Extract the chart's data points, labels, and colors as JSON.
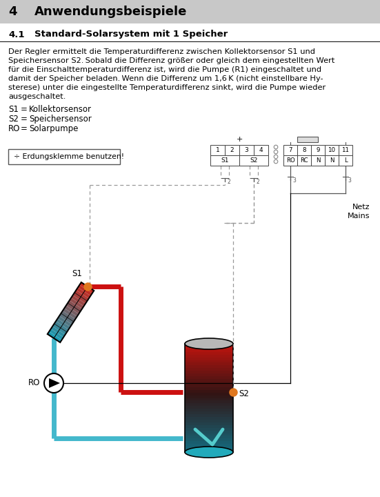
{
  "bg_color": "#ffffff",
  "header_bg": "#c8c8c8",
  "pipe_red": "#cc1111",
  "pipe_blue": "#44b8cc",
  "sensor_color": "#e07820",
  "text_color": "#000000",
  "body_lines": [
    "Der Regler ermittelt die Temperaturdifferenz zwischen Kollektorsensor S1 und",
    "Speichersensor S2. Sobald die Differenz größer oder gleich dem eingestellten Wert",
    "für die Einschalttemperaturdifferenz ist, wird die Pumpe (R1) eingeschaltet und",
    "damit der Speicher beladen. Wenn die Differenz um 1,6 K (nicht einstellbare Hy-",
    "sterese) unter die eingestellte Temperaturdifferenz sinkt, wird die Pumpe wieder",
    "ausgeschaltet."
  ],
  "legend": [
    [
      "S1",
      "=",
      "Kollektorsensor"
    ],
    [
      "S2",
      "=",
      "Speichersensor"
    ],
    [
      "RO",
      "=",
      "Solarpumpe"
    ]
  ],
  "ground_text": "÷ Erdungsklemme benutzen!",
  "netz_text": "Netz\nMains"
}
